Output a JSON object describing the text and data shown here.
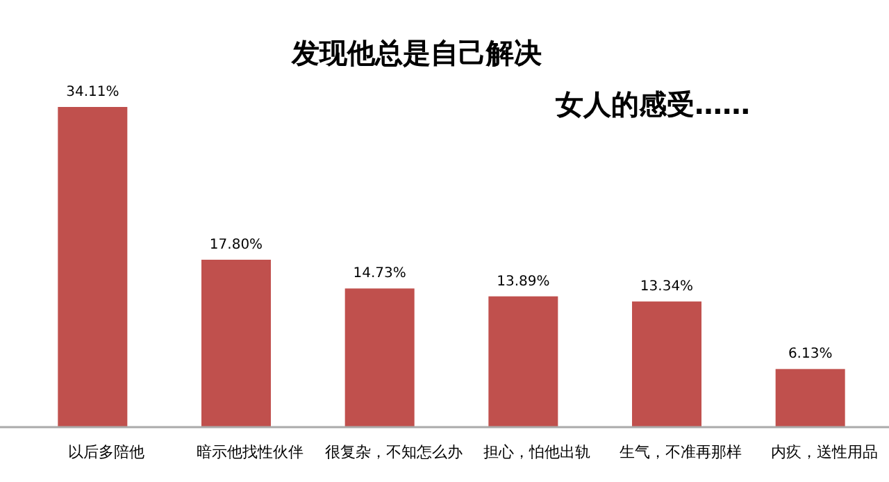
{
  "chart_data": {
    "type": "bar",
    "title": "发现他总是自己解决",
    "subtitle": "女人的感受……",
    "categories": [
      "以后多陪他",
      "暗示他找性伙伴",
      "很复杂，不知怎么办",
      "担心，怕他出轨",
      "生气，不准再那样",
      "内疚，送性用品"
    ],
    "values": [
      34.11,
      17.8,
      14.73,
      13.89,
      13.34,
      6.13
    ],
    "value_labels": [
      "34.11%",
      "17.80%",
      "14.73%",
      "13.89%",
      "13.34%",
      "6.13%"
    ],
    "color": "#c0504d"
  }
}
